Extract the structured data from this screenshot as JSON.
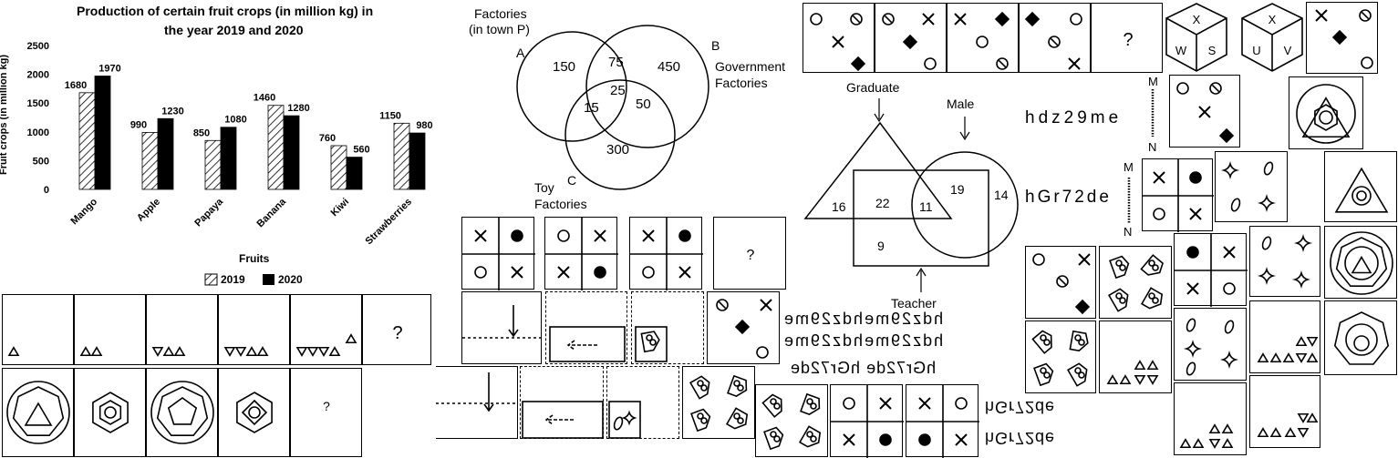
{
  "chart_data": {
    "type": "bar",
    "title_line1": "Production of certain fruit crops (in million kg) in",
    "title_line2": "the year 2019 and 2020",
    "xlabel": "Fruits",
    "ylabel": "Fruit crops (in million kg)",
    "ylim": [
      0,
      2500
    ],
    "yticks": [
      "2500",
      "2000",
      "1500",
      "1000",
      "500",
      "0"
    ],
    "categories": [
      "Mango",
      "Apple",
      "Papaya",
      "Banana",
      "Kiwi",
      "Strawberries"
    ],
    "series": [
      {
        "name": "2019",
        "values": [
          1680,
          990,
          850,
          1460,
          760,
          1150
        ],
        "pattern": "hatched"
      },
      {
        "name": "2020",
        "values": [
          1970,
          1230,
          1080,
          1280,
          560,
          980
        ],
        "color": "#000000"
      }
    ],
    "legend_position": "bottom"
  },
  "venn": {
    "title_line1": "Factories",
    "title_line2": "(in town P)",
    "label_a": "A",
    "label_b": "B",
    "label_c": "C",
    "b_name_line1": "Government",
    "b_name_line2": "Factories",
    "c_name_line1": "Toy",
    "c_name_line2": "Factories",
    "a_only": "150",
    "ab": "75",
    "b_only": "450",
    "abc": "25",
    "ac": "15",
    "bc": "50",
    "c_only": "300"
  },
  "venn2": {
    "graduate": "Graduate",
    "male": "Male",
    "teacher": "Teacher",
    "v16": "16",
    "v22": "22",
    "v11": "11",
    "v19": "19",
    "v14": "14",
    "v9": "9"
  },
  "mirror": {
    "m": "M",
    "n": "N",
    "word1": "hdz29me",
    "word2": "hGr72de",
    "opt1a": "hdz29mehdz29me",
    "opt1b": "hdz29mehdz29me",
    "opt2a": "hGr72de hGr72de",
    "opt2b": "hGr72de",
    "opt2c": "hGr72de"
  },
  "puzzle": {
    "question": "?",
    "cube_top": "X",
    "cube_w": "W",
    "cube_s": "S",
    "cube_u": "U",
    "cube_v": "V"
  },
  "icons": [
    "circle-icon",
    "cross-icon",
    "diamond-icon",
    "slashed-circle-icon",
    "star-icon",
    "arrow-icon",
    "triangle-icon",
    "hexagon-icon",
    "pentagon-icon",
    "heptagon-icon"
  ]
}
